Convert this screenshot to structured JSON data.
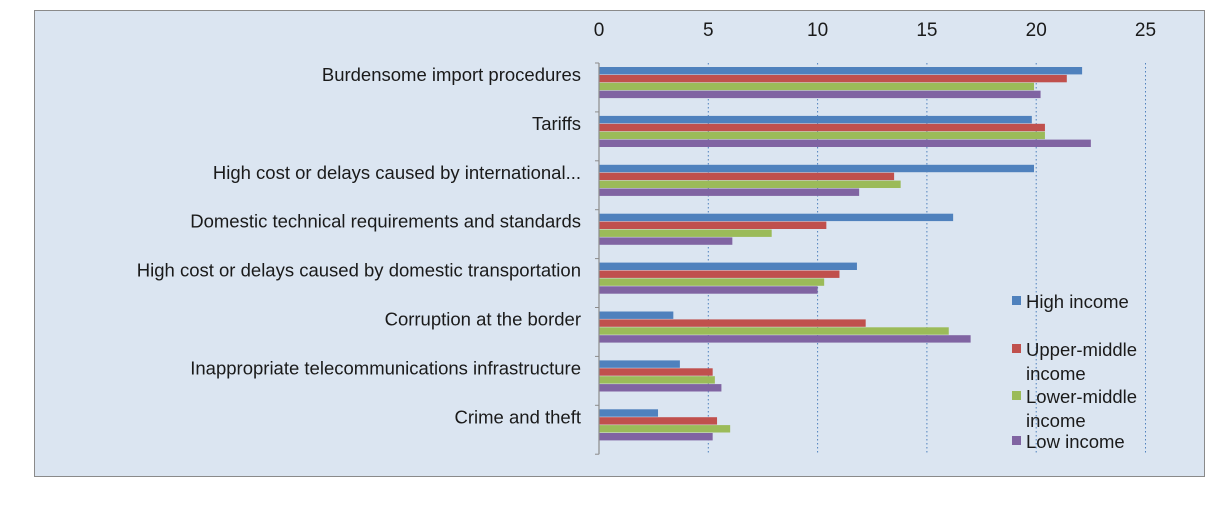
{
  "chart_data": {
    "type": "bar",
    "orientation": "horizontal",
    "title": "",
    "xlabel": "",
    "ylabel": "",
    "xlim": [
      0,
      25
    ],
    "x_ticks": [
      0,
      5,
      10,
      15,
      20,
      25
    ],
    "x_axis_position": "top",
    "grid": "vertical dotted",
    "legend_position": "right",
    "categories": [
      "Burdensome import procedures",
      "Tariffs",
      "High cost or delays caused by international...",
      "Domestic technical requirements and standards",
      "High cost or delays caused by domestic transportation",
      "Corruption at the border",
      "Inappropriate telecommunications infrastructure",
      "Crime and theft"
    ],
    "series": [
      {
        "name": "High income",
        "color": "#4f81bd",
        "values": [
          22.1,
          19.8,
          19.9,
          16.2,
          11.8,
          3.4,
          3.7,
          2.7
        ]
      },
      {
        "name": "Upper-middle income",
        "color": "#c0504d",
        "values": [
          21.4,
          20.4,
          13.5,
          10.4,
          11.0,
          12.2,
          5.2,
          5.4
        ]
      },
      {
        "name": "Lower-middle income",
        "color": "#9bbb59",
        "values": [
          19.9,
          20.4,
          13.8,
          7.9,
          10.3,
          16.0,
          5.3,
          6.0
        ]
      },
      {
        "name": "Low income",
        "color": "#8064a2",
        "values": [
          20.2,
          22.5,
          11.9,
          6.1,
          10.0,
          17.0,
          5.6,
          5.2
        ]
      }
    ]
  }
}
